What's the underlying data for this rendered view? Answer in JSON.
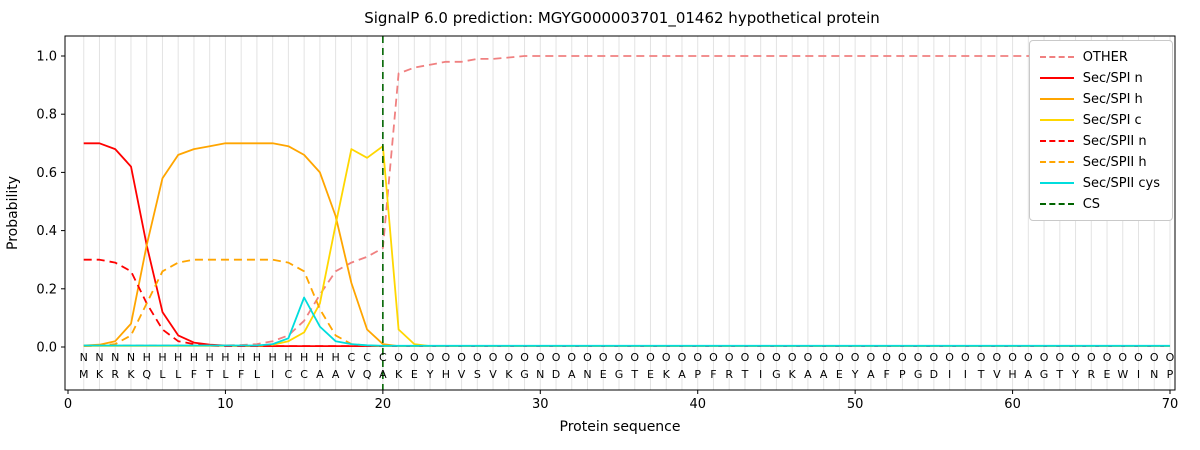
{
  "chart_data": {
    "type": "line",
    "title": "SignalP 6.0 prediction: MGYG000003701_01462 hypothetical protein",
    "xlabel": "Protein sequence",
    "ylabel": "Probability",
    "xlim": [
      -0.2,
      70.3
    ],
    "ylim": [
      -0.15,
      1.07
    ],
    "xticks": [
      0,
      10,
      20,
      30,
      40,
      50,
      60,
      70
    ],
    "yticks": [
      0.0,
      0.2,
      0.4,
      0.6,
      0.8,
      1.0
    ],
    "grid": "vertical gridline at every residue position 1-70",
    "legend_position": "upper right",
    "x_start": 1,
    "x_step": 1,
    "sequence": "MKRKQLLFTLFLICCAAVQAKEYHVSVKGNDANEGTEKAPFRTIGKAAEYAFPGDIITVHAGTYREWINP",
    "regions": "NNNNHHHHHHHHHHHHHCCCOOOOOOOOOOOOOOOOOOOOOOOOOOOOOOOOOOOOOOOOOOOOOOOOOO",
    "region_colors": {
      "N": "#ff0000",
      "H": "#ffa500",
      "C": "#ffd700",
      "O": "#9b9b9b"
    },
    "cs": {
      "label": "CS",
      "position": 20,
      "color": "#006400",
      "dash": true
    },
    "series": [
      {
        "name": "OTHER",
        "color": "#f08080",
        "dash": true,
        "values": [
          0.005,
          0.005,
          0.005,
          0.005,
          0.005,
          0.005,
          0.005,
          0.005,
          0.005,
          0.005,
          0.007,
          0.01,
          0.02,
          0.04,
          0.09,
          0.18,
          0.26,
          0.29,
          0.31,
          0.34,
          0.94,
          0.96,
          0.97,
          0.98,
          0.98,
          0.99,
          0.99,
          0.995,
          1.0,
          1.0,
          1.0,
          1.0,
          1.0,
          1.0,
          1.0,
          1.0,
          1.0,
          1.0,
          1.0,
          1.0,
          1.0,
          1.0,
          1.0,
          1.0,
          1.0,
          1.0,
          1.0,
          1.0,
          1.0,
          1.0,
          1.0,
          1.0,
          1.0,
          1.0,
          1.0,
          1.0,
          1.0,
          1.0,
          1.0,
          1.0,
          1.0,
          1.0,
          1.0,
          1.0,
          1.0,
          1.0,
          1.0,
          1.0,
          1.0,
          1.0
        ]
      },
      {
        "name": "Sec/SPI n",
        "color": "#ff0000",
        "dash": false,
        "values": [
          0.7,
          0.7,
          0.68,
          0.62,
          0.35,
          0.12,
          0.04,
          0.015,
          0.008,
          0.005,
          0.003,
          0.003,
          0.003,
          0.003,
          0.003,
          0.003,
          0.003,
          0.003,
          0.003,
          0.003,
          0.003,
          0.003,
          0.003,
          0.003,
          0.003,
          0.003,
          0.003,
          0.003,
          0.003,
          0.003,
          0.003,
          0.003,
          0.003,
          0.003,
          0.003,
          0.003,
          0.003,
          0.003,
          0.003,
          0.003,
          0.003,
          0.003,
          0.003,
          0.003,
          0.003,
          0.003,
          0.003,
          0.003,
          0.003,
          0.003,
          0.003,
          0.003,
          0.003,
          0.003,
          0.003,
          0.003,
          0.003,
          0.003,
          0.003,
          0.003,
          0.003,
          0.003,
          0.003,
          0.003,
          0.003,
          0.003,
          0.003,
          0.003,
          0.003,
          0.003
        ]
      },
      {
        "name": "Sec/SPI h",
        "color": "#ffa500",
        "dash": false,
        "values": [
          0.005,
          0.008,
          0.02,
          0.08,
          0.35,
          0.58,
          0.66,
          0.68,
          0.69,
          0.7,
          0.7,
          0.7,
          0.7,
          0.69,
          0.66,
          0.6,
          0.45,
          0.22,
          0.06,
          0.01,
          0.003,
          0.003,
          0.003,
          0.003,
          0.003,
          0.003,
          0.003,
          0.003,
          0.003,
          0.003,
          0.003,
          0.003,
          0.003,
          0.003,
          0.003,
          0.003,
          0.003,
          0.003,
          0.003,
          0.003,
          0.003,
          0.003,
          0.003,
          0.003,
          0.003,
          0.003,
          0.003,
          0.003,
          0.003,
          0.003,
          0.003,
          0.003,
          0.003,
          0.003,
          0.003,
          0.003,
          0.003,
          0.003,
          0.003,
          0.003,
          0.003,
          0.003,
          0.003,
          0.003,
          0.003,
          0.003,
          0.003,
          0.003,
          0.003,
          0.003
        ]
      },
      {
        "name": "Sec/SPI c",
        "color": "#ffd700",
        "dash": false,
        "values": [
          0.004,
          0.004,
          0.004,
          0.004,
          0.004,
          0.004,
          0.004,
          0.004,
          0.004,
          0.004,
          0.004,
          0.004,
          0.008,
          0.02,
          0.05,
          0.15,
          0.42,
          0.68,
          0.65,
          0.69,
          0.06,
          0.01,
          0.003,
          0.003,
          0.003,
          0.003,
          0.003,
          0.003,
          0.003,
          0.003,
          0.003,
          0.003,
          0.003,
          0.003,
          0.003,
          0.003,
          0.003,
          0.003,
          0.003,
          0.003,
          0.003,
          0.003,
          0.003,
          0.003,
          0.003,
          0.003,
          0.003,
          0.003,
          0.003,
          0.003,
          0.003,
          0.003,
          0.003,
          0.003,
          0.003,
          0.003,
          0.003,
          0.003,
          0.003,
          0.003,
          0.003,
          0.003,
          0.003,
          0.003,
          0.003,
          0.003,
          0.003,
          0.003,
          0.003,
          0.003
        ]
      },
      {
        "name": "Sec/SPII n",
        "color": "#ff0000",
        "dash": true,
        "values": [
          0.3,
          0.3,
          0.29,
          0.26,
          0.15,
          0.06,
          0.02,
          0.01,
          0.005,
          0.003,
          0.003,
          0.003,
          0.003,
          0.003,
          0.003,
          0.003,
          0.003,
          0.003,
          0.003,
          0.003,
          0.003,
          0.003,
          0.003,
          0.003,
          0.003,
          0.003,
          0.003,
          0.003,
          0.003,
          0.003,
          0.003,
          0.003,
          0.003,
          0.003,
          0.003,
          0.003,
          0.003,
          0.003,
          0.003,
          0.003,
          0.003,
          0.003,
          0.003,
          0.003,
          0.003,
          0.003,
          0.003,
          0.003,
          0.003,
          0.003,
          0.003,
          0.003,
          0.003,
          0.003,
          0.003,
          0.003,
          0.003,
          0.003,
          0.003,
          0.003,
          0.003,
          0.003,
          0.003,
          0.003,
          0.003,
          0.003,
          0.003,
          0.003,
          0.003,
          0.003
        ]
      },
      {
        "name": "Sec/SPII h",
        "color": "#ffa500",
        "dash": true,
        "values": [
          0.003,
          0.005,
          0.01,
          0.04,
          0.15,
          0.26,
          0.29,
          0.3,
          0.3,
          0.3,
          0.3,
          0.3,
          0.3,
          0.29,
          0.26,
          0.13,
          0.04,
          0.01,
          0.005,
          0.003,
          0.003,
          0.003,
          0.003,
          0.003,
          0.003,
          0.003,
          0.003,
          0.003,
          0.003,
          0.003,
          0.003,
          0.003,
          0.003,
          0.003,
          0.003,
          0.003,
          0.003,
          0.003,
          0.003,
          0.003,
          0.003,
          0.003,
          0.003,
          0.003,
          0.003,
          0.003,
          0.003,
          0.003,
          0.003,
          0.003,
          0.003,
          0.003,
          0.003,
          0.003,
          0.003,
          0.003,
          0.003,
          0.003,
          0.003,
          0.003,
          0.003,
          0.003,
          0.003,
          0.003,
          0.003,
          0.003,
          0.003,
          0.003,
          0.003,
          0.003
        ]
      },
      {
        "name": "Sec/SPII cys",
        "color": "#00dddd",
        "dash": false,
        "values": [
          0.005,
          0.005,
          0.005,
          0.005,
          0.005,
          0.005,
          0.005,
          0.005,
          0.005,
          0.005,
          0.005,
          0.005,
          0.01,
          0.03,
          0.17,
          0.07,
          0.02,
          0.01,
          0.006,
          0.004,
          0.004,
          0.004,
          0.004,
          0.004,
          0.004,
          0.004,
          0.004,
          0.004,
          0.004,
          0.004,
          0.004,
          0.004,
          0.004,
          0.004,
          0.004,
          0.004,
          0.004,
          0.004,
          0.004,
          0.004,
          0.004,
          0.004,
          0.004,
          0.004,
          0.004,
          0.004,
          0.004,
          0.004,
          0.004,
          0.004,
          0.004,
          0.004,
          0.004,
          0.004,
          0.004,
          0.004,
          0.004,
          0.004,
          0.004,
          0.004,
          0.004,
          0.004,
          0.004,
          0.004,
          0.004,
          0.004,
          0.004,
          0.004,
          0.004,
          0.004
        ]
      }
    ]
  }
}
